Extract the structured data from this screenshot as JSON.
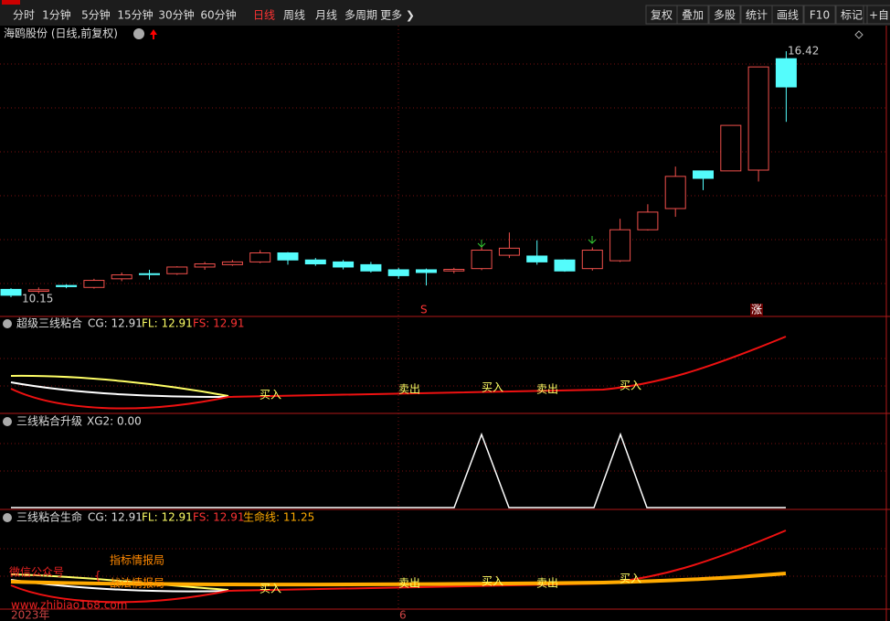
{
  "toolbar": {
    "left": [
      "分时",
      "1分钟",
      "5分钟",
      "15分钟",
      "30分钟",
      "60分钟",
      "日线",
      "周线",
      "月线",
      "多周期",
      "更多 ❯"
    ],
    "active": "日线",
    "right": [
      "复权",
      "叠加",
      "多股",
      "统计",
      "画线",
      "F10",
      "标记",
      "+自"
    ]
  },
  "main": {
    "title": "海鸥股份 (日线,前复权)",
    "high_label": 16.42,
    "low_label": 10.15,
    "signals": [
      "S",
      "涨"
    ],
    "candles": [
      {
        "open": 10.35,
        "close": 10.2,
        "high": 10.38,
        "low": 10.15
      },
      {
        "open": 10.3,
        "close": 10.34,
        "high": 10.4,
        "low": 10.25
      },
      {
        "open": 10.45,
        "close": 10.42,
        "high": 10.48,
        "low": 10.38
      },
      {
        "open": 10.4,
        "close": 10.58,
        "high": 10.62,
        "low": 10.37
      },
      {
        "open": 10.62,
        "close": 10.72,
        "high": 10.78,
        "low": 10.56
      },
      {
        "open": 10.75,
        "close": 10.74,
        "high": 10.85,
        "low": 10.6
      },
      {
        "open": 10.75,
        "close": 10.92,
        "high": 10.94,
        "low": 10.72
      },
      {
        "open": 10.92,
        "close": 11.0,
        "high": 11.05,
        "low": 10.85
      },
      {
        "open": 10.98,
        "close": 11.05,
        "high": 11.1,
        "low": 10.95
      },
      {
        "open": 11.05,
        "close": 11.28,
        "high": 11.35,
        "low": 11.02
      },
      {
        "open": 11.28,
        "close": 11.1,
        "high": 11.3,
        "low": 10.98
      },
      {
        "open": 11.1,
        "close": 11.0,
        "high": 11.15,
        "low": 10.95
      },
      {
        "open": 11.05,
        "close": 10.92,
        "high": 11.1,
        "low": 10.86
      },
      {
        "open": 10.98,
        "close": 10.82,
        "high": 11.05,
        "low": 10.78
      },
      {
        "open": 10.85,
        "close": 10.7,
        "high": 10.9,
        "low": 10.62
      },
      {
        "open": 10.85,
        "close": 10.78,
        "high": 10.88,
        "low": 10.45
      },
      {
        "open": 10.82,
        "close": 10.86,
        "high": 10.9,
        "low": 10.76
      },
      {
        "open": 10.88,
        "close": 11.35,
        "high": 11.42,
        "low": 10.84
      },
      {
        "open": 11.22,
        "close": 11.4,
        "high": 11.8,
        "low": 11.15
      },
      {
        "open": 11.2,
        "close": 11.05,
        "high": 11.6,
        "low": 10.98
      },
      {
        "open": 11.1,
        "close": 10.82,
        "high": 11.12,
        "low": 10.8
      },
      {
        "open": 10.88,
        "close": 11.35,
        "high": 11.42,
        "low": 10.83
      },
      {
        "open": 11.08,
        "close": 11.87,
        "high": 12.15,
        "low": 11.05
      },
      {
        "open": 11.87,
        "close": 12.32,
        "high": 12.52,
        "low": 11.85
      },
      {
        "open": 12.41,
        "close": 13.23,
        "high": 13.48,
        "low": 12.2
      },
      {
        "open": 13.37,
        "close": 13.18,
        "high": 13.37,
        "low": 12.88
      },
      {
        "open": 13.37,
        "close": 14.53,
        "high": 14.53,
        "low": 13.37
      },
      {
        "open": 13.39,
        "close": 16.02,
        "high": 16.02,
        "low": 13.1
      },
      {
        "open": 16.23,
        "close": 15.51,
        "high": 16.42,
        "low": 14.62
      }
    ]
  },
  "panel1": {
    "name": "超级三线粘合",
    "items": [
      "CG: 12.91",
      "FL: 12.91",
      "FS: 12.91"
    ],
    "signals": [
      "买入",
      "卖出",
      "买入",
      "卖出",
      "买入"
    ]
  },
  "panel2": {
    "name": "三线粘合升级",
    "items": [
      "XG2: 0.00"
    ]
  },
  "panel3": {
    "name": "三线粘合生命",
    "items": [
      "CG: 12.91",
      "FL: 12.91",
      "FS: 12.91",
      "生命线: 11.25"
    ],
    "signals": [
      "买入",
      "卖出",
      "买入",
      "卖出",
      "买入"
    ]
  },
  "watermark": {
    "label": "微信公众号",
    "line1": "指标情报局",
    "line2": "战法情报局",
    "url": "www.zhibiao168.com"
  },
  "axis": {
    "year": "2023年",
    "month": "6"
  }
}
